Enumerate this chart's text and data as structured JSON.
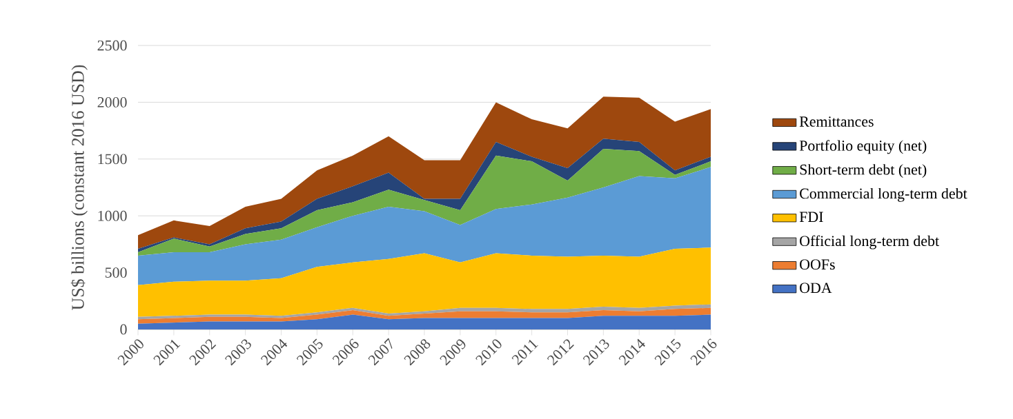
{
  "chart_data": {
    "type": "area",
    "stacked": true,
    "ylabel": "US$ billions (constant 2016 USD)",
    "x": [
      2000,
      2001,
      2002,
      2003,
      2004,
      2005,
      2006,
      2007,
      2008,
      2009,
      2010,
      2011,
      2012,
      2013,
      2014,
      2015,
      2016
    ],
    "xlim": [
      2000,
      2016
    ],
    "xticks": [
      2000,
      2001,
      2002,
      2003,
      2004,
      2005,
      2006,
      2007,
      2008,
      2009,
      2010,
      2011,
      2012,
      2013,
      2014,
      2015,
      2016
    ],
    "ylim": [
      0,
      2500
    ],
    "yticks": [
      0,
      500,
      1000,
      1500,
      2000,
      2500
    ],
    "grid": "y",
    "legend": "right",
    "series": [
      {
        "name": "ODA",
        "color": "#4472c4",
        "values": [
          50,
          60,
          70,
          70,
          70,
          90,
          130,
          90,
          100,
          100,
          100,
          100,
          100,
          120,
          120,
          120,
          130
        ]
      },
      {
        "name": "OOFs",
        "color": "#ed7d31",
        "values": [
          40,
          40,
          40,
          40,
          30,
          40,
          40,
          30,
          40,
          60,
          60,
          50,
          50,
          50,
          40,
          60,
          60
        ]
      },
      {
        "name": "Official long-term debt",
        "color": "#a5a5a5",
        "values": [
          20,
          20,
          20,
          20,
          20,
          20,
          20,
          20,
          20,
          30,
          30,
          30,
          30,
          30,
          30,
          30,
          30
        ]
      },
      {
        "name": "FDI",
        "color": "#ffc000",
        "values": [
          280,
          300,
          300,
          300,
          330,
          400,
          400,
          480,
          510,
          400,
          480,
          470,
          460,
          450,
          450,
          500,
          500
        ]
      },
      {
        "name": "Commercial long-term debt",
        "color": "#5b9bd5",
        "values": [
          260,
          260,
          250,
          320,
          340,
          350,
          410,
          460,
          370,
          330,
          390,
          450,
          520,
          600,
          710,
          620,
          710
        ]
      },
      {
        "name": "Short-term debt (net)",
        "color": "#70ad47",
        "values": [
          30,
          120,
          50,
          90,
          100,
          150,
          120,
          150,
          100,
          130,
          470,
          380,
          150,
          340,
          220,
          30,
          50
        ]
      },
      {
        "name": "Portfolio equity (net)",
        "color": "#264478",
        "values": [
          30,
          10,
          20,
          50,
          60,
          100,
          140,
          150,
          10,
          100,
          120,
          40,
          110,
          90,
          80,
          40,
          40
        ]
      },
      {
        "name": "Remittances",
        "color": "#9e480e",
        "values": [
          120,
          150,
          160,
          190,
          200,
          250,
          270,
          320,
          340,
          340,
          350,
          330,
          350,
          370,
          390,
          430,
          420
        ]
      }
    ]
  }
}
